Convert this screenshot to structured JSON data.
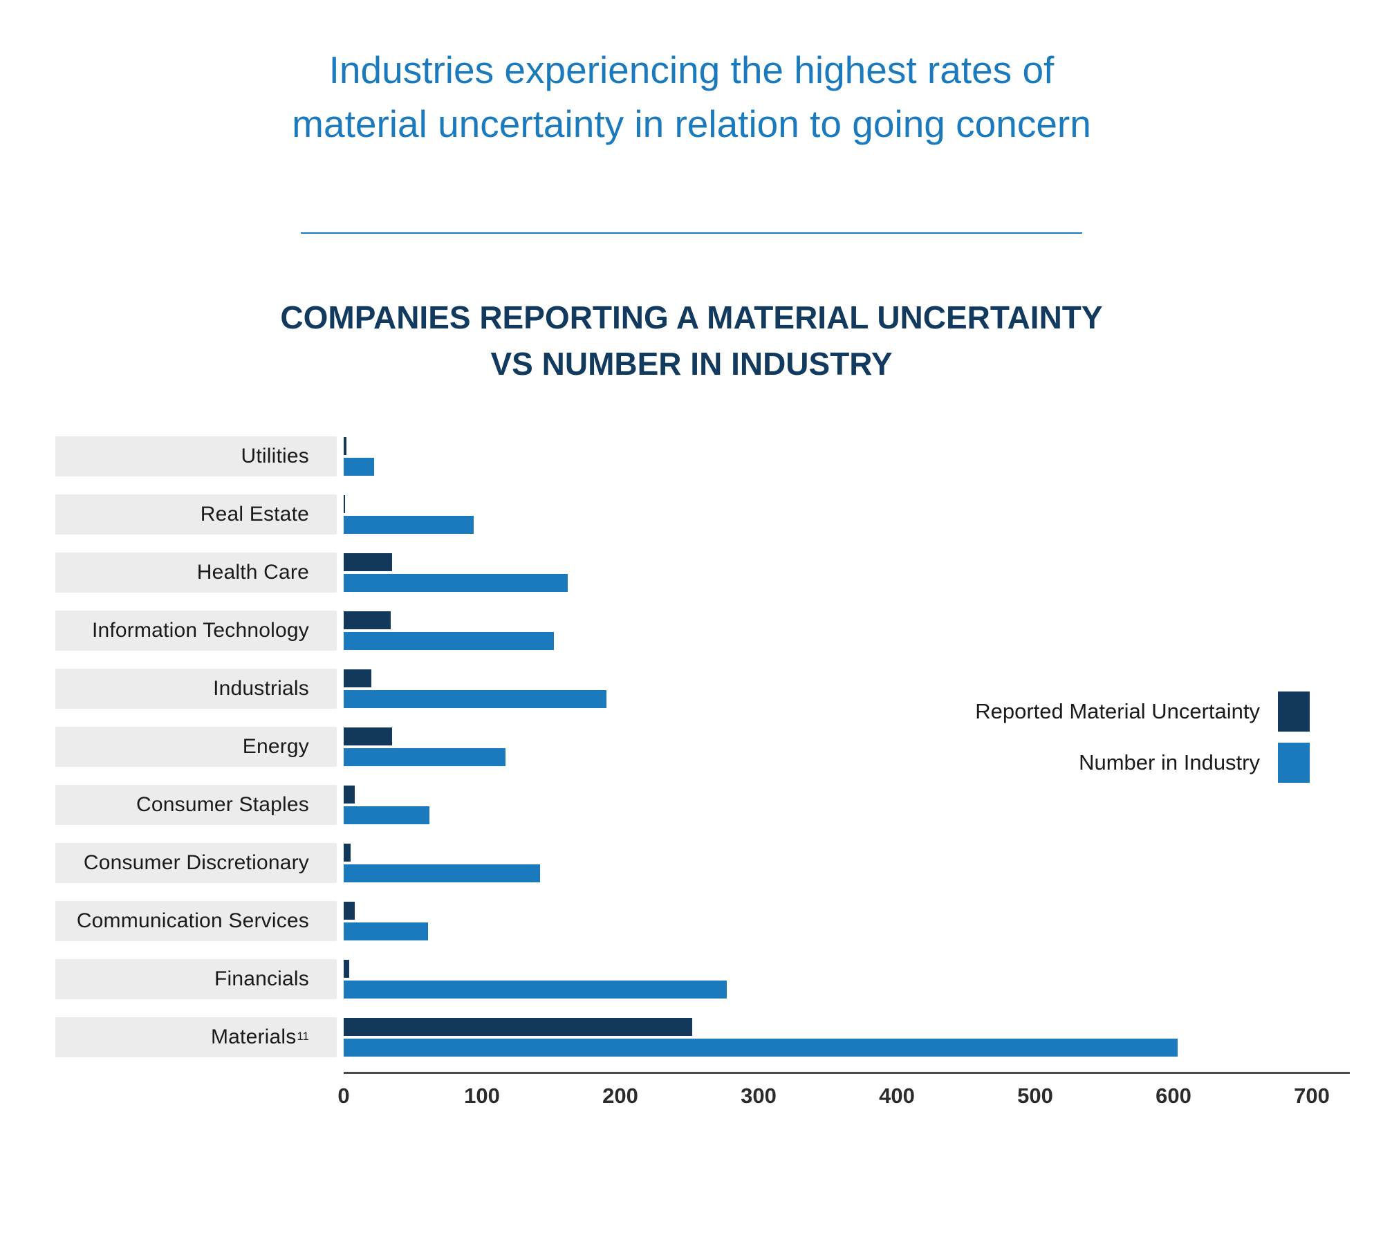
{
  "page": {
    "title_line1": "Industries experiencing the highest rates of",
    "title_line2": "material uncertainty in relation to going concern"
  },
  "chart_data": {
    "type": "bar",
    "orientation": "horizontal",
    "title_line1": "COMPANIES REPORTING A MATERIAL UNCERTAINTY",
    "title_line2": "VS NUMBER IN INDUSTRY",
    "categories": [
      {
        "label": "Utilities",
        "sup": ""
      },
      {
        "label": "Real Estate",
        "sup": ""
      },
      {
        "label": "Health Care",
        "sup": ""
      },
      {
        "label": "Information Technology",
        "sup": ""
      },
      {
        "label": "Industrials",
        "sup": ""
      },
      {
        "label": "Energy",
        "sup": ""
      },
      {
        "label": "Consumer Staples",
        "sup": ""
      },
      {
        "label": "Consumer Discretionary",
        "sup": ""
      },
      {
        "label": "Communication Services",
        "sup": ""
      },
      {
        "label": "Financials",
        "sup": ""
      },
      {
        "label": "Materials",
        "sup": "11"
      }
    ],
    "series": [
      {
        "name": "Reported Material Uncertainty",
        "color": "#12395c",
        "values": [
          2,
          1,
          35,
          34,
          20,
          35,
          8,
          5,
          8,
          4,
          252
        ]
      },
      {
        "name": "Number in Industry",
        "color": "#1a7abd",
        "values": [
          22,
          94,
          162,
          152,
          190,
          117,
          62,
          142,
          61,
          277,
          603
        ]
      }
    ],
    "xlim": [
      0,
      700
    ],
    "xticks": [
      0,
      100,
      200,
      300,
      400,
      500,
      600,
      700
    ],
    "legend_position": "right",
    "grid": false
  },
  "colors": {
    "page_title": "#1b7abd",
    "chart_title": "#123a5e",
    "category_box_bg": "#ececec",
    "axis_line": "#4a4a4a",
    "dark_bar": "#12395c",
    "light_bar": "#1a7abd"
  }
}
